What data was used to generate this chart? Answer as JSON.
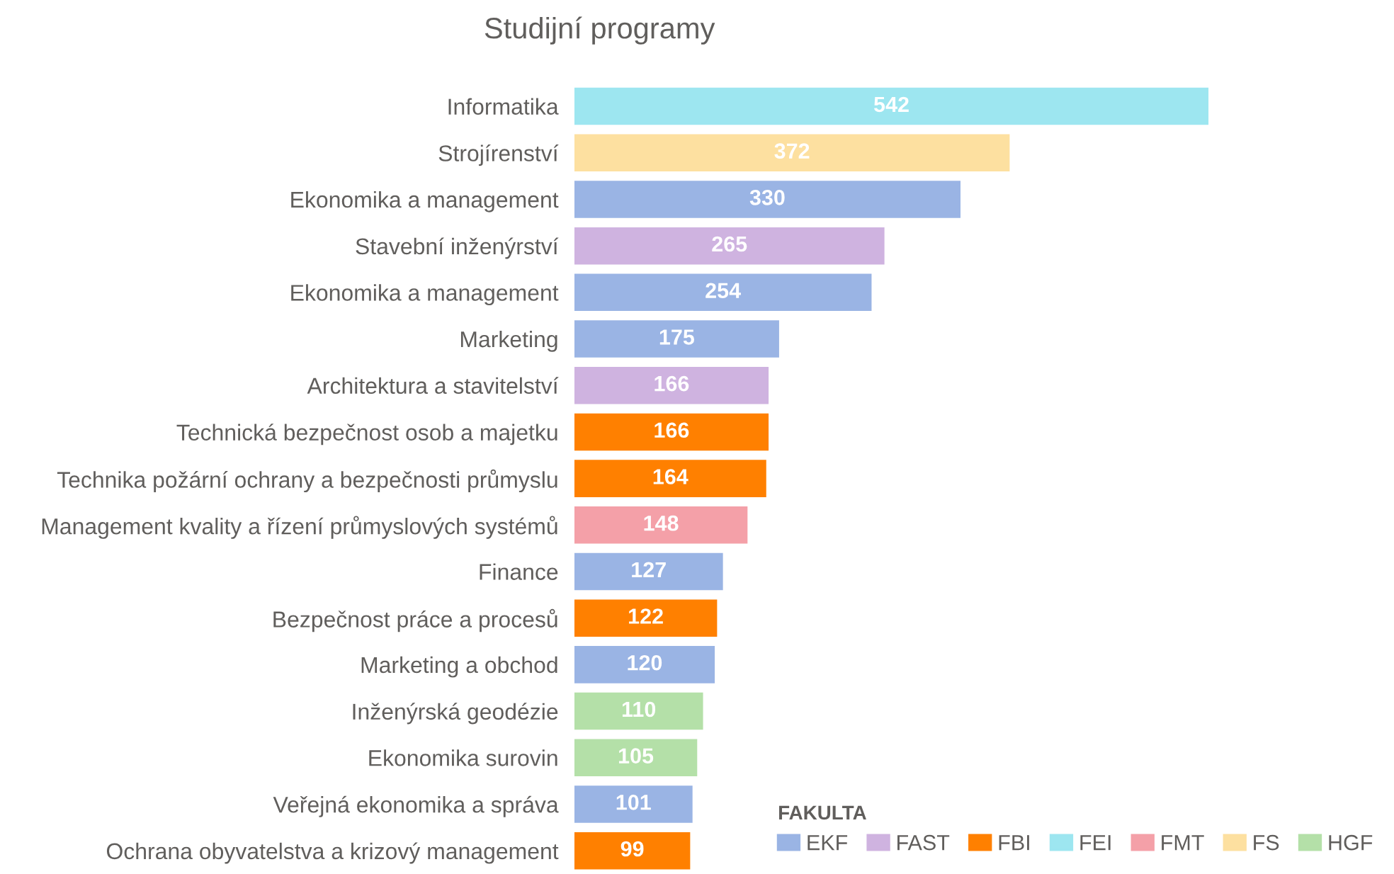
{
  "chart_data": {
    "type": "bar",
    "orientation": "horizontal",
    "title": "Studijní programy",
    "legend_title": "FAKULTA",
    "legend": "bottom right",
    "data_labels": true,
    "grid": false,
    "categories": [
      "Informatika",
      "Strojírenství",
      "Ekonomika a management",
      "Stavební inženýrství",
      "Ekonomika a management",
      "Marketing",
      "Architektura a stavitelství",
      "Technická bezpečnost osob a majetku",
      "Technika požární ochrany a bezpečnosti průmyslu",
      "Management kvality a řízení průmyslových systémů",
      "Finance",
      "Bezpečnost práce a procesů",
      "Marketing a obchod",
      "Inženýrská geodézie",
      "Ekonomika surovin",
      "Veřejná ekonomika a správa",
      "Ochrana obyvatelstva a krizový management"
    ],
    "series": [
      {
        "name": "EKF",
        "color": "#9ab4e4",
        "values": [
          null,
          null,
          330,
          null,
          254,
          175,
          null,
          null,
          null,
          null,
          127,
          null,
          120,
          null,
          null,
          101,
          null
        ]
      },
      {
        "name": "FAST",
        "color": "#cfb3e0",
        "values": [
          null,
          null,
          null,
          265,
          null,
          null,
          166,
          null,
          null,
          null,
          null,
          null,
          null,
          null,
          null,
          null,
          null
        ]
      },
      {
        "name": "FBI",
        "color": "#ff8000",
        "values": [
          null,
          null,
          null,
          null,
          null,
          null,
          null,
          166,
          164,
          null,
          null,
          122,
          null,
          null,
          null,
          null,
          99
        ]
      },
      {
        "name": "FEI",
        "color": "#9de6f0",
        "values": [
          542,
          null,
          null,
          null,
          null,
          null,
          null,
          null,
          null,
          null,
          null,
          null,
          null,
          null,
          null,
          null,
          null
        ]
      },
      {
        "name": "FMT",
        "color": "#f4a0a8",
        "values": [
          null,
          null,
          null,
          null,
          null,
          null,
          null,
          null,
          null,
          148,
          null,
          null,
          null,
          null,
          null,
          null,
          null
        ]
      },
      {
        "name": "FS",
        "color": "#fde0a0",
        "values": [
          null,
          372,
          null,
          null,
          null,
          null,
          null,
          null,
          null,
          null,
          null,
          null,
          null,
          null,
          null,
          null,
          null
        ]
      },
      {
        "name": "HGF",
        "color": "#b4e0a8",
        "values": [
          null,
          null,
          null,
          null,
          null,
          null,
          null,
          null,
          null,
          null,
          null,
          null,
          null,
          110,
          105,
          null,
          null
        ]
      }
    ]
  }
}
